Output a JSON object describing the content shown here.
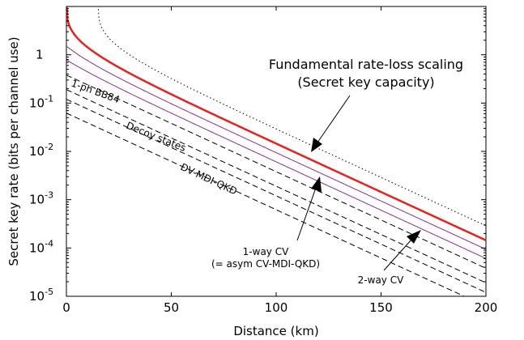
{
  "chart_data": {
    "type": "line",
    "xlabel": "Distance (km)",
    "ylabel": "Secret  key rate  (bits per channel use)",
    "xlim": [
      0,
      200
    ],
    "ylim": [
      1e-05,
      10
    ],
    "yscale": "log",
    "grid": false,
    "x_ticks": [
      "0",
      "50",
      "100",
      "150",
      "200"
    ],
    "y_ticks": [
      {
        "base": "10",
        "exp": "-5"
      },
      {
        "base": "10",
        "exp": "-4"
      },
      {
        "base": "10",
        "exp": "-3"
      },
      {
        "base": "10",
        "exp": "-2"
      },
      {
        "base": "10",
        "exp": "-1"
      },
      {
        "base": "1",
        "exp": ""
      }
    ],
    "series": [
      {
        "name": "",
        "style": "dotted",
        "color": "#000000",
        "formula": "-log2(1-eta)",
        "eta_scale": 2
      },
      {
        "name": "",
        "style": "solid-thick",
        "color": "#e8211f",
        "formula": "-log2(1-eta)",
        "eta_scale": 1
      },
      {
        "name": "",
        "style": "solid",
        "color": "#8b2f8f",
        "formula": "-log2(1-eta)",
        "eta_scale": 0.65
      },
      {
        "name": "",
        "style": "solid",
        "color": "#8b2f8f",
        "formula": "-log2(1-eta)",
        "eta_scale": 0.42
      },
      {
        "name": "",
        "style": "dashed",
        "color": "#000000",
        "formula": "eta",
        "eta_scale": 0.38
      },
      {
        "name": "",
        "style": "dashed",
        "color": "#000000",
        "formula": "eta",
        "eta_scale": 0.19
      },
      {
        "name": "",
        "style": "dashed",
        "color": "#000000",
        "formula": "eta",
        "eta_scale": 0.12
      },
      {
        "name": "",
        "style": "dashed",
        "color": "#000000",
        "formula": "eta",
        "eta_scale": 0.062
      }
    ],
    "loss_db_per_km": 0.2,
    "annotations": {
      "fundamental_line1": "Fundamental rate-loss scaling",
      "fundamental_line2": "(Secret key capacity)",
      "bb84": "1-ph BB84",
      "decoy": "Decoy states",
      "dvmdi": "DV-MDI-QKD",
      "oneway_line1": "1-way CV",
      "oneway_line2": "(= asym CV-MDI-QKD)",
      "twoway": "2-way CV"
    }
  }
}
